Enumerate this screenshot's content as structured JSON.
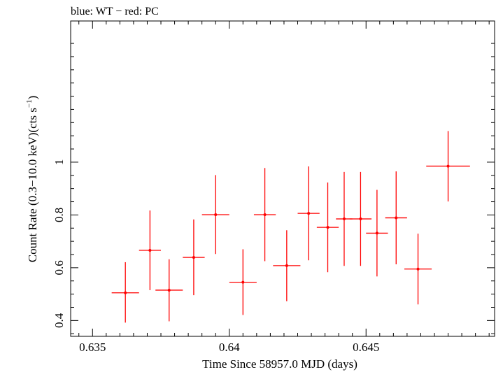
{
  "chart_data": {
    "type": "scatter",
    "title": "blue: WT − red: PC",
    "xlabel": "Time Since 58957.0 MJD (days)",
    "ylabel_main": "Count Rate (0.3−10.0 keV)(cts s",
    "ylabel_sup": "−1",
    "ylabel_end": ")",
    "xlim": [
      0.6342,
      0.6497
    ],
    "ylim": [
      0.34,
      1.535
    ],
    "xticks": [
      {
        "value": 0.635,
        "label": "0.635"
      },
      {
        "value": 0.64,
        "label": "0.64"
      },
      {
        "value": 0.645,
        "label": "0.645"
      }
    ],
    "yticks": [
      {
        "value": 0.4,
        "label": "0.4"
      },
      {
        "value": 0.6,
        "label": "0.6"
      },
      {
        "value": 0.8,
        "label": "0.8"
      },
      {
        "value": 1.0,
        "label": "1"
      }
    ],
    "series": [
      {
        "name": "PC",
        "color": "#ff0000",
        "points": [
          {
            "x": 0.6362,
            "xerr": 0.0005,
            "y": 0.505,
            "ylo": 0.392,
            "yhi": 0.621
          },
          {
            "x": 0.6371,
            "xerr": 0.0004,
            "y": 0.666,
            "ylo": 0.515,
            "yhi": 0.817
          },
          {
            "x": 0.6378,
            "xerr": 0.0005,
            "y": 0.515,
            "ylo": 0.397,
            "yhi": 0.632
          },
          {
            "x": 0.6387,
            "xerr": 0.0004,
            "y": 0.639,
            "ylo": 0.496,
            "yhi": 0.783
          },
          {
            "x": 0.6395,
            "xerr": 0.0005,
            "y": 0.801,
            "ylo": 0.652,
            "yhi": 0.951
          },
          {
            "x": 0.6405,
            "xerr": 0.0005,
            "y": 0.545,
            "ylo": 0.421,
            "yhi": 0.67
          },
          {
            "x": 0.6413,
            "xerr": 0.0004,
            "y": 0.801,
            "ylo": 0.625,
            "yhi": 0.978
          },
          {
            "x": 0.6421,
            "xerr": 0.0005,
            "y": 0.608,
            "ylo": 0.473,
            "yhi": 0.742
          },
          {
            "x": 0.6429,
            "xerr": 0.0004,
            "y": 0.806,
            "ylo": 0.628,
            "yhi": 0.984
          },
          {
            "x": 0.6436,
            "xerr": 0.0004,
            "y": 0.753,
            "ylo": 0.583,
            "yhi": 0.923
          },
          {
            "x": 0.6442,
            "xerr": 0.0003,
            "y": 0.785,
            "ylo": 0.607,
            "yhi": 0.963
          },
          {
            "x": 0.6448,
            "xerr": 0.0004,
            "y": 0.785,
            "ylo": 0.607,
            "yhi": 0.963
          },
          {
            "x": 0.6454,
            "xerr": 0.0004,
            "y": 0.731,
            "ylo": 0.567,
            "yhi": 0.895
          },
          {
            "x": 0.6461,
            "xerr": 0.0004,
            "y": 0.789,
            "ylo": 0.613,
            "yhi": 0.965
          },
          {
            "x": 0.6469,
            "xerr": 0.0005,
            "y": 0.595,
            "ylo": 0.461,
            "yhi": 0.729
          },
          {
            "x": 0.648,
            "xerr": 0.0008,
            "y": 0.985,
            "ylo": 0.851,
            "yhi": 1.118
          }
        ]
      }
    ]
  }
}
